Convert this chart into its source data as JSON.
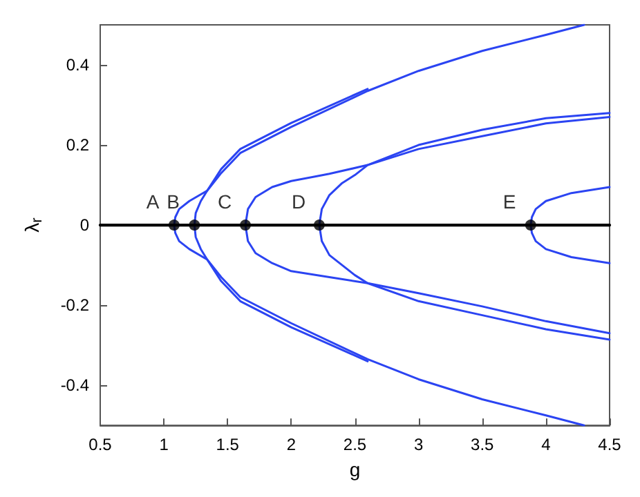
{
  "chart_data": {
    "type": "line",
    "xlabel": "g",
    "ylabel": "λ$_{r}$",
    "xlim": [
      0.5,
      4.5
    ],
    "ylim": [
      -0.5,
      0.5
    ],
    "xticks": [
      0.5,
      1,
      1.5,
      2,
      2.5,
      3,
      3.5,
      4,
      4.5
    ],
    "yticks": [
      -0.4,
      -0.2,
      0,
      0.2,
      0.4
    ],
    "grid": false,
    "marker": "none",
    "line_style": "solid",
    "series": [
      {
        "color": "#000000",
        "x": [
          0.5,
          4.5
        ],
        "values": [
          0,
          0
        ]
      },
      {
        "color": "#2b44f2",
        "x": [
          4.3,
          4.0,
          3.5,
          3.0,
          2.6,
          2.0,
          1.6,
          1.45,
          1.34,
          1.2,
          1.12,
          1.09,
          1.08,
          1.09,
          1.12,
          1.2,
          1.34,
          1.45,
          1.6,
          2.0,
          2.6,
          3.0,
          3.5,
          4.0,
          4.3
        ],
        "values": [
          0.5,
          0.475,
          0.435,
          0.385,
          0.335,
          0.245,
          0.18,
          0.13,
          0.086,
          0.06,
          0.04,
          0.02,
          0,
          -0.02,
          -0.04,
          -0.06,
          -0.086,
          -0.13,
          -0.18,
          -0.245,
          -0.335,
          -0.385,
          -0.435,
          -0.475,
          -0.5
        ]
      },
      {
        "color": "#2b44f2",
        "x": [
          2.6,
          2.0,
          1.6,
          1.45,
          1.34,
          1.29,
          1.25,
          1.24,
          1.25,
          1.29,
          1.34,
          1.45,
          1.6,
          2.0,
          2.6
        ],
        "values": [
          0.34,
          0.255,
          0.19,
          0.14,
          0.086,
          0.06,
          0.03,
          0,
          -0.03,
          -0.06,
          -0.086,
          -0.14,
          -0.19,
          -0.255,
          -0.34
        ]
      },
      {
        "color": "#2b44f2",
        "x": [
          4.5,
          4.0,
          3.5,
          3.0,
          2.6,
          2.3,
          2.0,
          1.85,
          1.72,
          1.66,
          1.64,
          1.66,
          1.72,
          1.85,
          2.0,
          2.3,
          2.6,
          3.0,
          3.5,
          4.0,
          4.5
        ],
        "values": [
          0.27,
          0.254,
          0.222,
          0.19,
          0.15,
          0.128,
          0.11,
          0.095,
          0.07,
          0.04,
          0,
          -0.04,
          -0.07,
          -0.095,
          -0.115,
          -0.13,
          -0.145,
          -0.17,
          -0.203,
          -0.24,
          -0.27
        ]
      },
      {
        "color": "#2b44f2",
        "x": [
          4.5,
          4.0,
          3.5,
          3.0,
          2.6,
          2.5,
          2.4,
          2.3,
          2.24,
          2.22,
          2.24,
          2.3,
          2.4,
          2.5,
          2.6,
          3.0,
          3.5,
          4.0,
          4.5
        ],
        "values": [
          0.28,
          0.267,
          0.238,
          0.2,
          0.15,
          0.125,
          0.105,
          0.075,
          0.04,
          0,
          -0.04,
          -0.075,
          -0.1,
          -0.125,
          -0.145,
          -0.19,
          -0.225,
          -0.26,
          -0.286
        ]
      },
      {
        "color": "#2b44f2",
        "x": [
          4.5,
          4.2,
          4.0,
          3.92,
          3.89,
          3.88,
          3.89,
          3.92,
          4.0,
          4.2,
          4.5
        ],
        "values": [
          0.095,
          0.08,
          0.06,
          0.04,
          0.02,
          0,
          -0.02,
          -0.04,
          -0.06,
          -0.08,
          -0.095
        ]
      },
      {
        "type": "scatter",
        "marker": "circle",
        "color": "#000000",
        "x": [
          1.08,
          1.24,
          1.64,
          2.22,
          3.88
        ],
        "values": [
          0,
          0,
          0,
          0,
          0
        ]
      }
    ],
    "annotations": [
      {
        "text": "A",
        "x": 1.08,
        "y": 0
      },
      {
        "text": "B",
        "x": 1.24,
        "y": 0
      },
      {
        "text": "C",
        "x": 1.64,
        "y": 0
      },
      {
        "text": "D",
        "x": 2.22,
        "y": 0
      },
      {
        "text": "E",
        "x": 3.88,
        "y": 0
      }
    ]
  }
}
